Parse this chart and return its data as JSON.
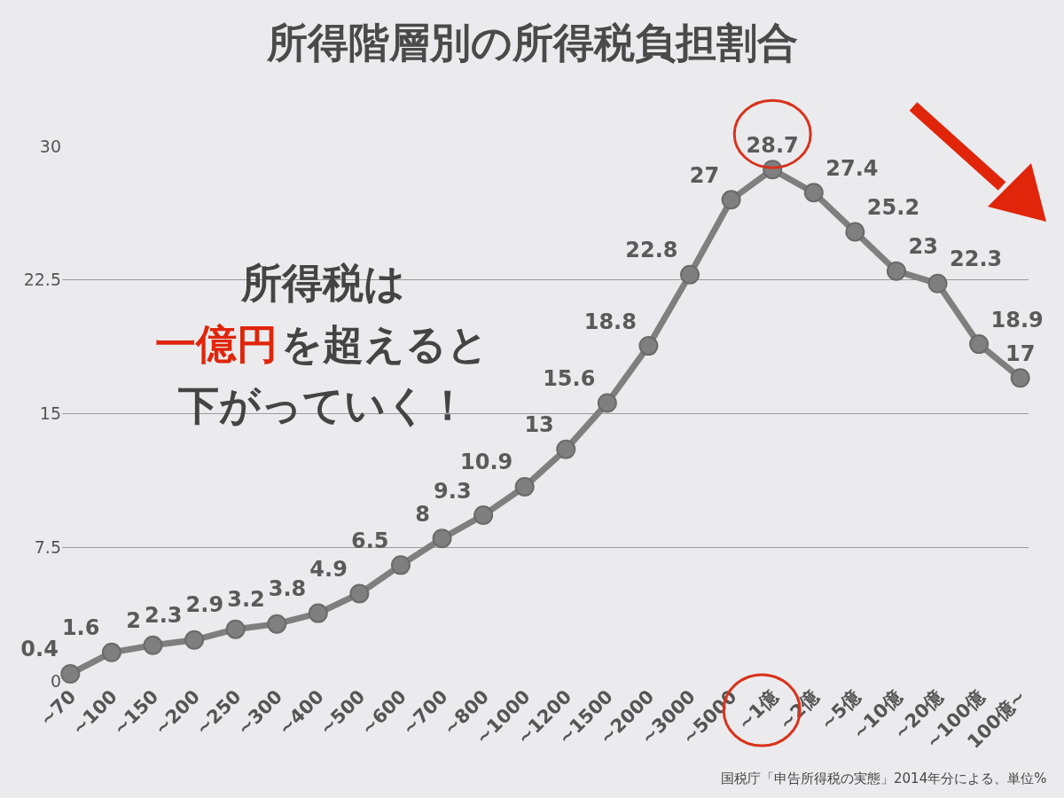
{
  "chart_data": {
    "type": "line",
    "title": "所得階層別の所得税負担割合",
    "categories": [
      "~70",
      "~100",
      "~150",
      "~200",
      "~250",
      "~300",
      "~400",
      "~500",
      "~600",
      "~700",
      "~800",
      "~1000",
      "~1200",
      "~1500",
      "~2000",
      "~3000",
      "~5000",
      "~1億",
      "~2億",
      "~5億",
      "~10億",
      "~20億",
      "~100億",
      "100億~"
    ],
    "series": [
      {
        "color": "#7f7f7f",
        "values": [
          0.4,
          1.6,
          2,
          2.3,
          2.9,
          3.2,
          3.8,
          4.9,
          6.5,
          8,
          9.3,
          10.9,
          13,
          15.6,
          18.8,
          22.8,
          27,
          28.7,
          27.4,
          25.2,
          23,
          22.3,
          18.9,
          17
        ]
      }
    ],
    "data_labels": true,
    "marker": "circle",
    "line_style": "solid",
    "ylim": [
      0,
      30
    ],
    "yticks": [
      0,
      7.5,
      15,
      22.5,
      30
    ],
    "grid": "y",
    "legend": false,
    "annotations": [
      "所得税は",
      "一億円",
      "を超えると",
      "下がっていく！",
      "国税庁「申告所得税の実態」2014年分による、単位%"
    ]
  }
}
